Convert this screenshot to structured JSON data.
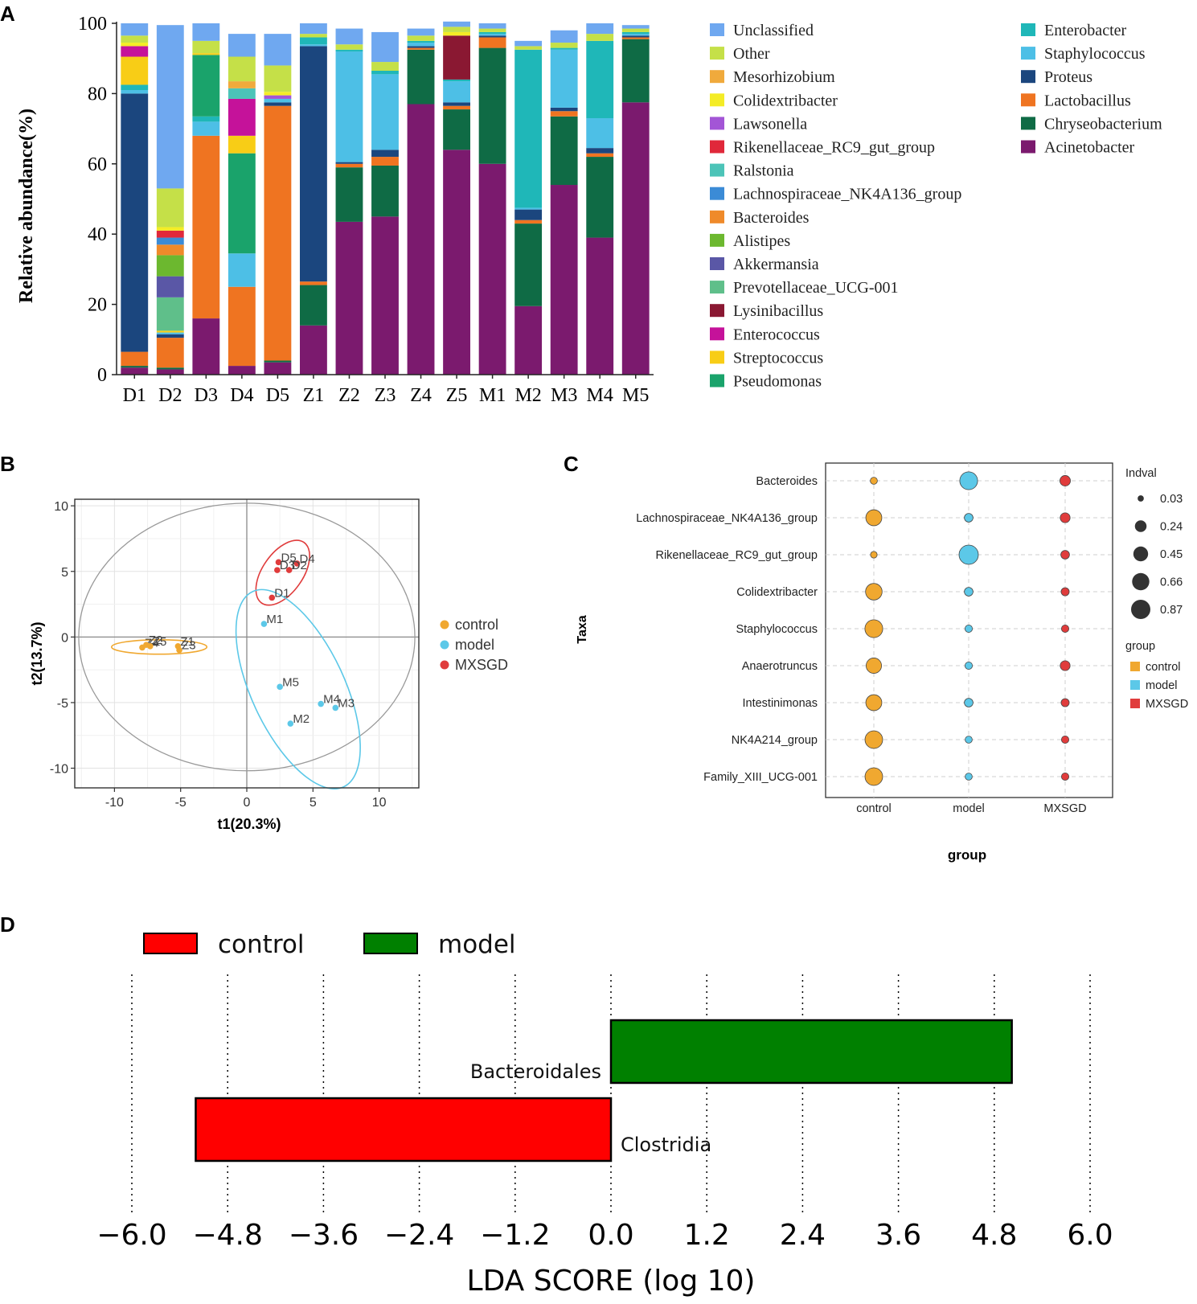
{
  "panels": {
    "a": "A",
    "b": "B",
    "c": "C",
    "d": "D"
  },
  "chart_data": [
    {
      "id": "A",
      "type": "bar",
      "stacked": true,
      "ylabel": "Relative abundance(%)",
      "ylim": [
        0,
        100
      ],
      "yticks": [
        "0",
        "20",
        "40",
        "60",
        "80",
        "100"
      ],
      "categories": [
        "D1",
        "D2",
        "D3",
        "D4",
        "D5",
        "Z1",
        "Z2",
        "Z3",
        "Z4",
        "Z5",
        "M1",
        "M2",
        "M3",
        "M4",
        "M5"
      ],
      "series": [
        {
          "name": "Acinetobacter",
          "color": "#7b1a6e",
          "values": [
            2,
            1.5,
            16,
            2.5,
            3.5,
            14,
            43.5,
            45,
            77,
            64,
            60,
            19.5,
            54,
            39,
            77.5
          ]
        },
        {
          "name": "Chryseobacterium",
          "color": "#0f6b45",
          "values": [
            0.5,
            0.5,
            0,
            0,
            0.5,
            11.5,
            15.5,
            14.5,
            15.5,
            11.5,
            33,
            23.5,
            19.5,
            23,
            18
          ]
        },
        {
          "name": "Lactobacillus",
          "color": "#ef7421",
          "values": [
            4,
            8.5,
            52,
            22.5,
            72.5,
            1,
            1,
            2.5,
            0.5,
            1,
            3,
            1,
            1.5,
            1,
            0.5
          ]
        },
        {
          "name": "Proteus",
          "color": "#1b467e",
          "values": [
            73.5,
            1,
            0,
            0,
            1,
            67,
            0.5,
            2,
            0.5,
            1,
            0.5,
            3,
            1,
            1.5,
            0.5
          ]
        },
        {
          "name": "Staphylococcus",
          "color": "#4dbfe6",
          "values": [
            1,
            0.5,
            4,
            9.5,
            1,
            0.5,
            31.5,
            21.5,
            1,
            6,
            0.5,
            0.5,
            16.5,
            8.5,
            0.5
          ]
        },
        {
          "name": "Enterobacter",
          "color": "#1fb7b8",
          "values": [
            1.5,
            0,
            1.5,
            0,
            0,
            2,
            0.5,
            1,
            0.5,
            0.5,
            0.5,
            45,
            0.5,
            22,
            0.5
          ]
        },
        {
          "name": "Pseudomonas",
          "color": "#1aa36b",
          "values": [
            0,
            0,
            17.5,
            28.5,
            0,
            0,
            0,
            0,
            0,
            0,
            0,
            0,
            0,
            0,
            0
          ]
        },
        {
          "name": "Streptococcus",
          "color": "#f8cd16",
          "values": [
            8,
            0.5,
            0.5,
            5,
            0,
            0,
            0,
            0,
            0,
            0,
            0,
            0,
            0,
            0,
            0
          ]
        },
        {
          "name": "Enterococcus",
          "color": "#c5129a",
          "values": [
            3,
            0,
            0,
            10.5,
            0,
            0,
            0,
            0,
            0,
            0,
            0,
            0,
            0,
            0,
            0
          ]
        },
        {
          "name": "Lysinibacillus",
          "color": "#8a1832",
          "values": [
            0,
            0,
            0,
            0,
            0,
            0,
            0,
            0,
            0,
            12.5,
            0,
            0,
            0,
            0,
            0
          ]
        },
        {
          "name": "Prevotellaceae_UCG-001",
          "color": "#5fbf8a",
          "values": [
            0,
            9.5,
            0,
            0,
            0,
            0,
            0,
            0,
            0,
            0,
            0,
            0,
            0,
            0,
            0
          ]
        },
        {
          "name": "Akkermansia",
          "color": "#5a57a6",
          "values": [
            0,
            6,
            0,
            0,
            0,
            0,
            0,
            0,
            0,
            0,
            0,
            0,
            0,
            0,
            0
          ]
        },
        {
          "name": "Alistipes",
          "color": "#6cb82f",
          "values": [
            0,
            6,
            0,
            0,
            0,
            0,
            0,
            0,
            0,
            0,
            0,
            0,
            0,
            0,
            0
          ]
        },
        {
          "name": "Bacteroides",
          "color": "#ef8a2a",
          "values": [
            0,
            3,
            0,
            0,
            0,
            0,
            0,
            0,
            0,
            0,
            0,
            0,
            0,
            0,
            0
          ]
        },
        {
          "name": "Lachnospiraceae_NK4A136_group",
          "color": "#3b8bd6",
          "values": [
            0,
            2,
            0,
            0,
            0,
            0,
            0,
            0,
            0,
            0,
            0,
            0,
            0,
            0,
            0
          ]
        },
        {
          "name": "Ralstonia",
          "color": "#4cc4b8",
          "values": [
            0,
            0,
            0,
            3,
            0,
            0,
            0,
            0,
            0,
            0,
            0,
            0,
            0,
            0,
            0
          ]
        },
        {
          "name": "Rikenellaceae_RC9_gut_group",
          "color": "#e0283a",
          "values": [
            0,
            2,
            0,
            0,
            0,
            0,
            0,
            0,
            0,
            0,
            0,
            0,
            0,
            0,
            0
          ]
        },
        {
          "name": "Lawsonella",
          "color": "#a355d6",
          "values": [
            0,
            0,
            0,
            0,
            1,
            0,
            0,
            0,
            0,
            0,
            0,
            0,
            0,
            0,
            0
          ]
        },
        {
          "name": "Colidextribacter",
          "color": "#f4ec26",
          "values": [
            1,
            1,
            0,
            0,
            1,
            0,
            0,
            0,
            0,
            1,
            0,
            0,
            0,
            0,
            0
          ]
        },
        {
          "name": "Mesorhizobium",
          "color": "#f0aa3c",
          "values": [
            0,
            0,
            0,
            2,
            0,
            0,
            0,
            0,
            0,
            0,
            0,
            0,
            0,
            0,
            0
          ]
        },
        {
          "name": "Other",
          "color": "#c5e048",
          "values": [
            2,
            11,
            3.5,
            7,
            7.5,
            1,
            1.5,
            2.5,
            1.5,
            1.5,
            1,
            1,
            1.5,
            2,
            1
          ]
        },
        {
          "name": "Unclassified",
          "color": "#6fa8f0",
          "values": [
            3.5,
            46.5,
            5,
            6.5,
            9,
            3,
            4.5,
            8.5,
            2,
            1.5,
            1.5,
            1.5,
            3.5,
            3,
            1
          ]
        }
      ],
      "legend_col1": [
        "Unclassified",
        "Other",
        "Mesorhizobium",
        "Colidextribacter",
        "Lawsonella",
        "Rikenellaceae_RC9_gut_group",
        "Ralstonia",
        "Lachnospiraceae_NK4A136_group",
        "Bacteroides",
        "Alistipes",
        "Akkermansia",
        "Prevotellaceae_UCG-001",
        "Lysinibacillus",
        "Enterococcus",
        "Streptococcus",
        "Pseudomonas"
      ],
      "legend_col2": [
        "Enterobacter",
        "Staphylococcus",
        "Proteus",
        "Lactobacillus",
        "Chryseobacterium",
        "Acinetobacter"
      ]
    },
    {
      "id": "B",
      "type": "scatter",
      "xlabel": "t1(20.3%)",
      "ylabel": "t2(13.7%)",
      "xlim": [
        -13,
        13
      ],
      "ylim": [
        -11.5,
        10.5
      ],
      "xticks": [
        "-10",
        "-5",
        "0",
        "5",
        "10"
      ],
      "yticks": [
        "-10",
        "-5",
        "0",
        "5",
        "10"
      ],
      "groups": [
        {
          "name": "control",
          "color": "#f0a830",
          "points": [
            {
              "label": "Z4",
              "x": -7.9,
              "y": -0.8
            },
            {
              "label": "Z2",
              "x": -7.6,
              "y": -0.6
            },
            {
              "label": "Z5",
              "x": -7.3,
              "y": -0.7
            },
            {
              "label": "Z1",
              "x": -5.2,
              "y": -0.7
            },
            {
              "label": "Z3",
              "x": -5.1,
              "y": -1.0
            }
          ]
        },
        {
          "name": "model",
          "color": "#5cc8e8",
          "points": [
            {
              "label": "M1",
              "x": 1.3,
              "y": 1.0
            },
            {
              "label": "M5",
              "x": 2.5,
              "y": -3.8
            },
            {
              "label": "M4",
              "x": 5.6,
              "y": -5.1
            },
            {
              "label": "M3",
              "x": 6.7,
              "y": -5.4
            },
            {
              "label": "M2",
              "x": 3.3,
              "y": -6.6
            }
          ]
        },
        {
          "name": "MXSGD",
          "color": "#e03c3c",
          "points": [
            {
              "label": "D5",
              "x": 2.4,
              "y": 5.7
            },
            {
              "label": "D4",
              "x": 3.8,
              "y": 5.6
            },
            {
              "label": "D3",
              "x": 2.3,
              "y": 5.1
            },
            {
              "label": "D2",
              "x": 3.2,
              "y": 5.1
            },
            {
              "label": "D1",
              "x": 1.9,
              "y": 3.0
            }
          ]
        }
      ]
    },
    {
      "id": "C",
      "type": "bubble",
      "xlabel": "group",
      "ylabel": "Taxa",
      "x": [
        "control",
        "model",
        "MXSGD"
      ],
      "taxa": [
        "Bacteroides",
        "Lachnospiraceae_NK4A136_group",
        "Rikenellaceae_RC9_gut_group",
        "Colidextribacter",
        "Staphylococcus",
        "Anaerotruncus",
        "Intestinimonas",
        "NK4A214_group",
        "Family_XIII_UCG-001"
      ],
      "indval": [
        [
          0.05,
          0.72,
          0.18
        ],
        [
          0.55,
          0.1,
          0.15
        ],
        [
          0.04,
          0.87,
          0.1
        ],
        [
          0.6,
          0.1,
          0.08
        ],
        [
          0.72,
          0.06,
          0.06
        ],
        [
          0.5,
          0.06,
          0.15
        ],
        [
          0.55,
          0.1,
          0.08
        ],
        [
          0.7,
          0.05,
          0.06
        ],
        [
          0.7,
          0.05,
          0.06
        ]
      ],
      "size_legend_title": "Indval",
      "size_legend": [
        "0.03",
        "0.24",
        "0.45",
        "0.66",
        "0.87"
      ],
      "group_legend_title": "group",
      "group_colors": {
        "control": "#f0a830",
        "model": "#5cc8e8",
        "MXSGD": "#e03c3c"
      }
    },
    {
      "id": "D",
      "type": "bar",
      "orientation": "horizontal",
      "xlabel": "LDA SCORE (log 10)",
      "xlim": [
        -6.0,
        6.0
      ],
      "xticks": [
        "−6.0",
        "−4.8",
        "−3.6",
        "−2.4",
        "−1.2",
        "0.0",
        "1.2",
        "2.4",
        "3.6",
        "4.8",
        "6.0"
      ],
      "bars": [
        {
          "label": "Bacteroidales",
          "value": 5.02,
          "group": "model",
          "color": "#008000"
        },
        {
          "label": "Clostridia",
          "value": -5.2,
          "group": "control",
          "color": "#ff0000"
        }
      ],
      "legend": [
        {
          "name": "control",
          "color": "#ff0000"
        },
        {
          "name": "model",
          "color": "#008000"
        }
      ]
    }
  ]
}
